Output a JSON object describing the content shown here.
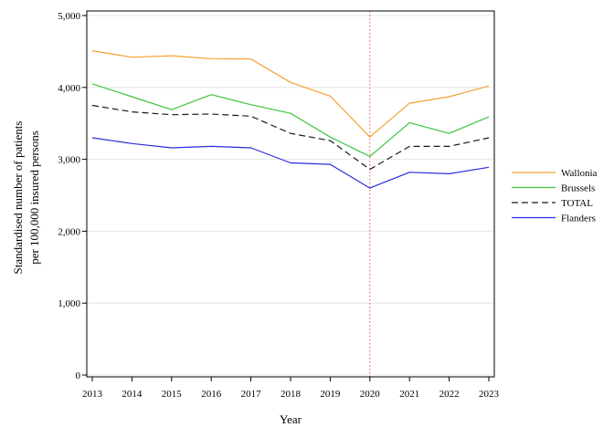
{
  "chart_data": {
    "type": "line",
    "title": "",
    "xlabel": "Year",
    "ylabel": [
      "Standardised number of patients",
      "per 100,000 insured persons"
    ],
    "x": [
      2013,
      2014,
      2015,
      2016,
      2017,
      2018,
      2019,
      2020,
      2021,
      2022,
      2023
    ],
    "x_tick_labels": [
      "2013",
      "2014",
      "2015",
      "2016",
      "2017",
      "2018",
      "2019",
      "2020",
      "2021",
      "2022",
      "2023"
    ],
    "ylim": [
      0,
      5000
    ],
    "y_ticks": [
      0,
      1000,
      2000,
      3000,
      4000,
      5000
    ],
    "y_tick_labels": [
      "0",
      "1,000",
      "2,000",
      "3,000",
      "4,000",
      "5,000"
    ],
    "grid": true,
    "legend_position": "right",
    "reference_line": {
      "x": 2020,
      "color": "#e05a5a",
      "style": "dotted"
    },
    "series": [
      {
        "name": "Wallonia",
        "color": "#f5a033",
        "dash": "solid",
        "values": [
          4510,
          4420,
          4440,
          4400,
          4395,
          4070,
          3880,
          3310,
          3780,
          3870,
          4020
        ]
      },
      {
        "name": "Brussels",
        "color": "#3ec43e",
        "dash": "solid",
        "values": [
          4050,
          3870,
          3690,
          3900,
          3760,
          3640,
          3310,
          3040,
          3510,
          3360,
          3590
        ]
      },
      {
        "name": "TOTAL",
        "color": "#1a1a1a",
        "dash": "dashed",
        "values": [
          3750,
          3660,
          3620,
          3630,
          3600,
          3360,
          3260,
          2860,
          3180,
          3180,
          3300
        ]
      },
      {
        "name": "Flanders",
        "color": "#2b2be0",
        "dash": "solid",
        "values": [
          3300,
          3220,
          3160,
          3180,
          3160,
          2950,
          2930,
          2600,
          2820,
          2800,
          2890
        ]
      }
    ]
  }
}
